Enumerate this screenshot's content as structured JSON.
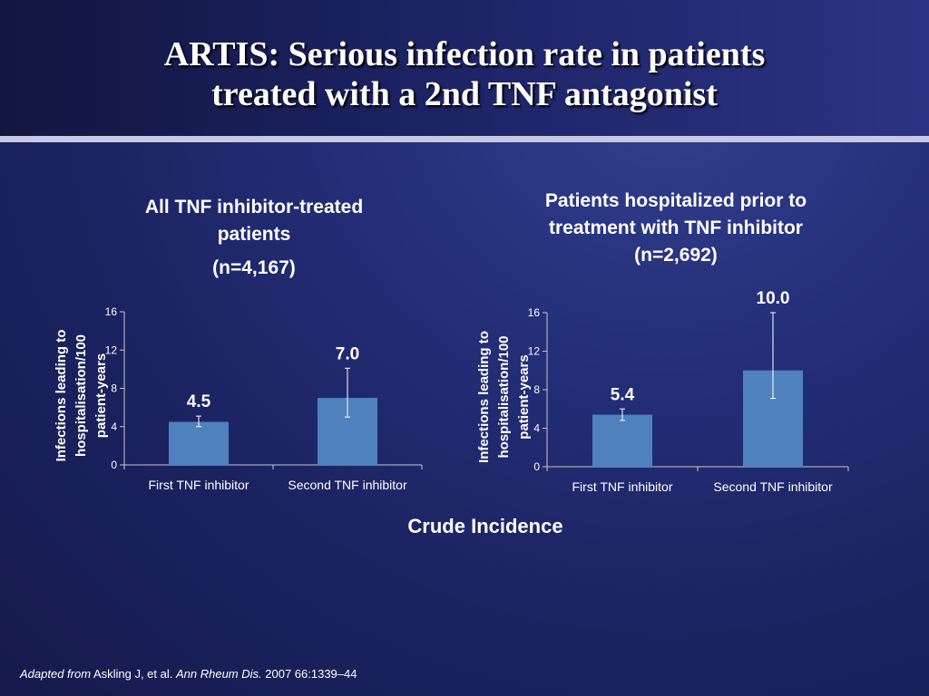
{
  "slide": {
    "title_lines": [
      "ARTIS: Serious infection rate in patients",
      "treated with a 2nd TNF antagonist"
    ],
    "footer_label": "Crude Incidence",
    "citation": {
      "prefix": "Adapted from",
      "authors": " Askling J, et al. ",
      "journal": "Ann Rheum Dis.",
      "details": " 2007 66:1339–44"
    }
  },
  "colors": {
    "bar": "#4f81bd",
    "axis": "#c8c8c8"
  },
  "chart_data": [
    {
      "type": "bar",
      "title_lines": [
        "All TNF inhibitor-treated",
        "patients"
      ],
      "subtitle": "(n=4,167)",
      "ylabel_lines": [
        "Infections leading to",
        "hospitalisation/100",
        "patient-years"
      ],
      "xlabel": "",
      "categories": [
        "First TNF inhibitor",
        "Second TNF inhibitor"
      ],
      "values": [
        4.5,
        7.0
      ],
      "value_labels": [
        "4.5",
        "7.0"
      ],
      "error_low": [
        4.0,
        5.0
      ],
      "error_high": [
        5.1,
        10.1
      ],
      "ylim": [
        0,
        16
      ],
      "yticks": [
        0,
        4,
        8,
        12,
        16
      ],
      "grid": false
    },
    {
      "type": "bar",
      "title_lines": [
        "Patients hospitalized prior to",
        "treatment with TNF inhibitor",
        "(n=2,692)"
      ],
      "ylabel_lines": [
        "Infections leading to",
        "hospitalisation/100",
        "patient-years"
      ],
      "xlabel": "",
      "categories": [
        "First TNF inhibitor",
        "Second TNF inhibitor"
      ],
      "values": [
        5.4,
        10.0
      ],
      "value_labels": [
        "5.4",
        "10.0"
      ],
      "error_low": [
        4.8,
        7.1
      ],
      "error_high": [
        6.0,
        16.0
      ],
      "ylim": [
        0,
        16
      ],
      "yticks": [
        0,
        4,
        8,
        12,
        16
      ],
      "grid": false
    }
  ]
}
